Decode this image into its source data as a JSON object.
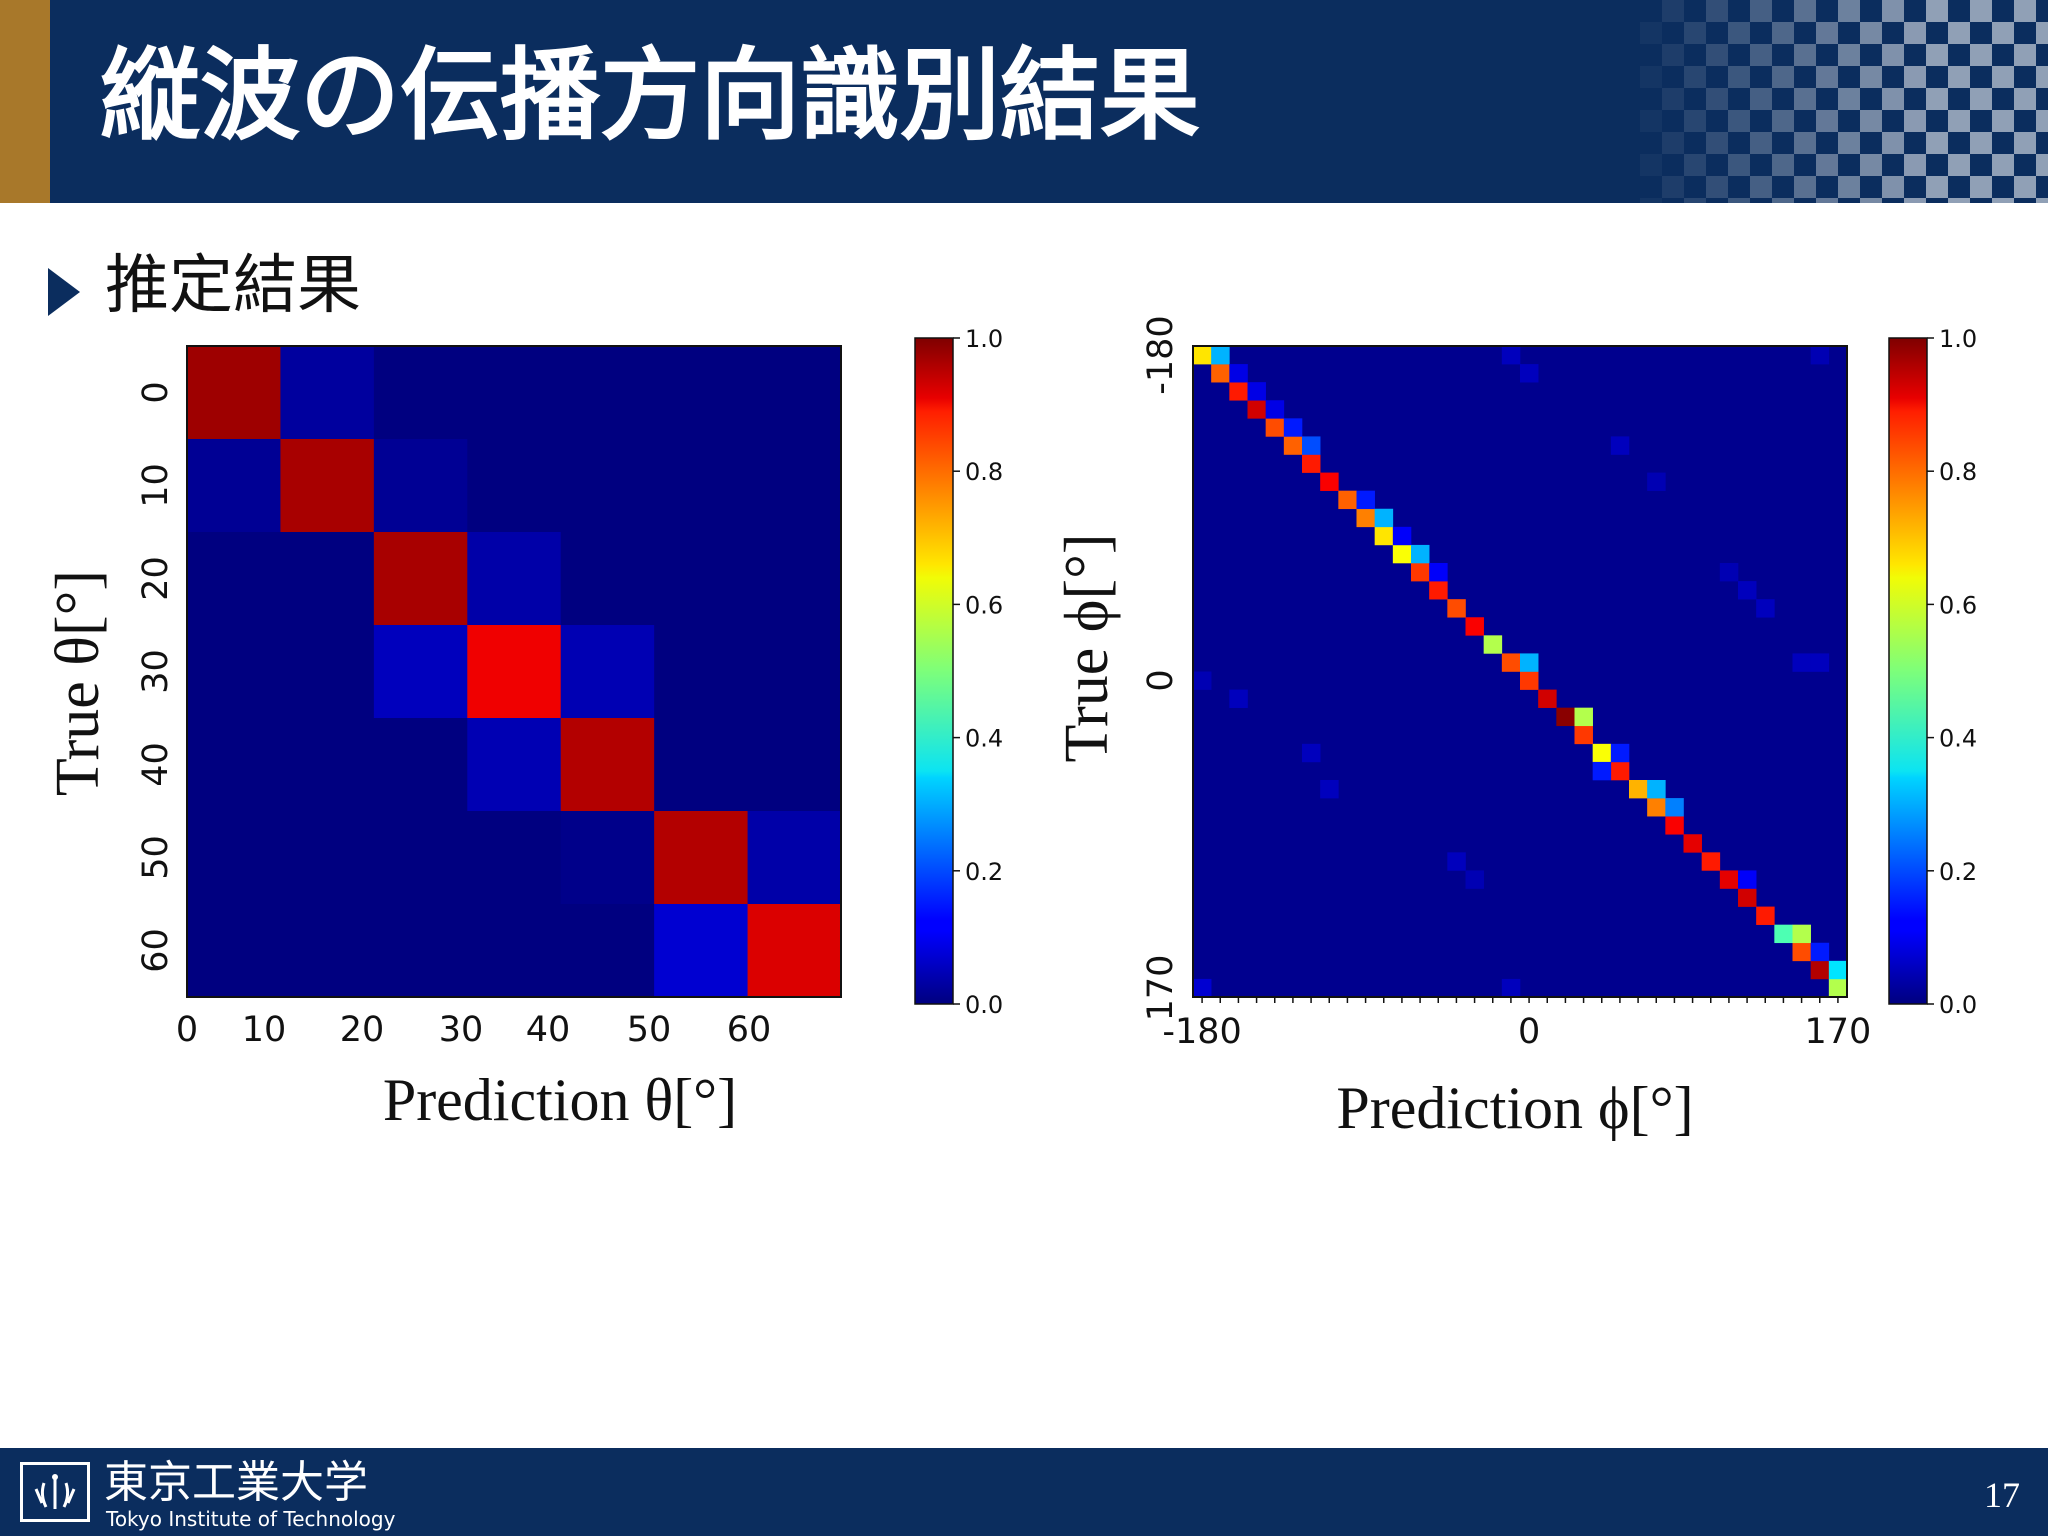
{
  "slide": {
    "title": "縦波の伝播方向識別結果",
    "bullet": "推定結果",
    "page_number": "17"
  },
  "footer": {
    "logo_jp": "東京工業大学",
    "logo_en": "Tokyo Institute of Technology"
  },
  "colors": {
    "header_bg": "#0b2d5e",
    "header_accent": "#a8782a",
    "footer_bg": "#0b2d5e"
  },
  "chart_data": [
    {
      "type": "heatmap",
      "title": "",
      "xlabel": "Prediction θ[°]",
      "ylabel": "True θ[°]",
      "x_categories": [
        "0",
        "10",
        "20",
        "30",
        "40",
        "50",
        "60"
      ],
      "y_categories": [
        "0",
        "10",
        "20",
        "30",
        "40",
        "50",
        "60"
      ],
      "colormap": "jet",
      "zlim": [
        0,
        1
      ],
      "colorbar_ticks": [
        "0.0",
        "0.2",
        "0.4",
        "0.6",
        "0.8",
        "1.0"
      ],
      "values": [
        [
          0.97,
          0.03,
          0,
          0,
          0,
          0,
          0
        ],
        [
          0.02,
          0.96,
          0.02,
          0,
          0,
          0,
          0
        ],
        [
          0,
          0,
          0.96,
          0.04,
          0,
          0,
          0
        ],
        [
          0,
          0,
          0.06,
          0.89,
          0.05,
          0,
          0
        ],
        [
          0,
          0,
          0,
          0.05,
          0.95,
          0,
          0
        ],
        [
          0,
          0,
          0,
          0,
          0.01,
          0.95,
          0.04
        ],
        [
          0,
          0,
          0,
          0,
          0,
          0.08,
          0.91
        ]
      ]
    },
    {
      "type": "heatmap",
      "title": "",
      "xlabel": "Prediction  ϕ[°]",
      "ylabel": "True  ϕ[°]",
      "x_range": [
        -180,
        170
      ],
      "y_range": [
        -180,
        170
      ],
      "step": 10,
      "x_tick_labels": [
        "-180",
        "0",
        "170"
      ],
      "y_tick_labels": [
        "-180",
        "0",
        "170"
      ],
      "colormap": "jet",
      "zlim": [
        0,
        1
      ],
      "colorbar_ticks": [
        "0.0",
        "0.2",
        "0.4",
        "0.6",
        "0.8",
        "1.0"
      ],
      "diagonal": [
        0.65,
        0.78,
        0.85,
        0.92,
        0.8,
        0.78,
        0.85,
        0.88,
        0.78,
        0.75,
        0.65,
        0.62,
        0.82,
        0.85,
        0.8,
        0.88,
        0.55,
        0.8,
        0.82,
        0.92,
        0.99,
        0.82,
        0.62,
        0.85,
        0.7,
        0.75,
        0.88,
        0.9,
        0.85,
        0.9,
        0.92,
        0.85,
        0.45,
        0.8,
        0.95,
        0.55
      ],
      "off_diagonal": [
        {
          "true": -180,
          "pred": -170,
          "value": 0.3
        },
        {
          "true": -170,
          "pred": -160,
          "value": 0.1
        },
        {
          "true": -160,
          "pred": -150,
          "value": 0.1
        },
        {
          "true": -150,
          "pred": -140,
          "value": 0.1
        },
        {
          "true": -140,
          "pred": -130,
          "value": 0.15
        },
        {
          "true": -130,
          "pred": -120,
          "value": 0.2
        },
        {
          "true": -100,
          "pred": -90,
          "value": 0.15
        },
        {
          "true": -90,
          "pred": -80,
          "value": 0.3
        },
        {
          "true": -80,
          "pred": -70,
          "value": 0.12
        },
        {
          "true": -70,
          "pred": -60,
          "value": 0.3
        },
        {
          "true": -60,
          "pred": -50,
          "value": 0.12
        },
        {
          "true": -10,
          "pred": 0,
          "value": 0.3
        },
        {
          "true": 20,
          "pred": 30,
          "value": 0.55
        },
        {
          "true": 40,
          "pred": 50,
          "value": 0.15
        },
        {
          "true": 50,
          "pred": 40,
          "value": 0.15
        },
        {
          "true": 60,
          "pred": 70,
          "value": 0.3
        },
        {
          "true": 70,
          "pred": 80,
          "value": 0.25
        },
        {
          "true": 110,
          "pred": 120,
          "value": 0.12
        },
        {
          "true": 140,
          "pred": 150,
          "value": 0.55
        },
        {
          "true": 150,
          "pred": 160,
          "value": 0.15
        },
        {
          "true": 160,
          "pred": 170,
          "value": 0.35
        },
        {
          "true": -180,
          "pred": -10,
          "value": 0.06
        },
        {
          "true": -170,
          "pred": 0,
          "value": 0.06
        },
        {
          "true": -180,
          "pred": 160,
          "value": 0.05
        },
        {
          "true": -130,
          "pred": 50,
          "value": 0.06
        },
        {
          "true": -110,
          "pred": 70,
          "value": 0.05
        },
        {
          "true": -60,
          "pred": 110,
          "value": 0.05
        },
        {
          "true": -50,
          "pred": 120,
          "value": 0.06
        },
        {
          "true": -40,
          "pred": 130,
          "value": 0.06
        },
        {
          "true": -10,
          "pred": 150,
          "value": 0.06
        },
        {
          "true": -10,
          "pred": 160,
          "value": 0.06
        },
        {
          "true": 0,
          "pred": -180,
          "value": 0.05
        },
        {
          "true": 10,
          "pred": -160,
          "value": 0.06
        },
        {
          "true": 40,
          "pred": -120,
          "value": 0.06
        },
        {
          "true": 60,
          "pred": -110,
          "value": 0.06
        },
        {
          "true": 100,
          "pred": -40,
          "value": 0.06
        },
        {
          "true": 110,
          "pred": -30,
          "value": 0.05
        },
        {
          "true": 170,
          "pred": -180,
          "value": 0.08
        },
        {
          "true": 170,
          "pred": -10,
          "value": 0.06
        }
      ]
    }
  ]
}
